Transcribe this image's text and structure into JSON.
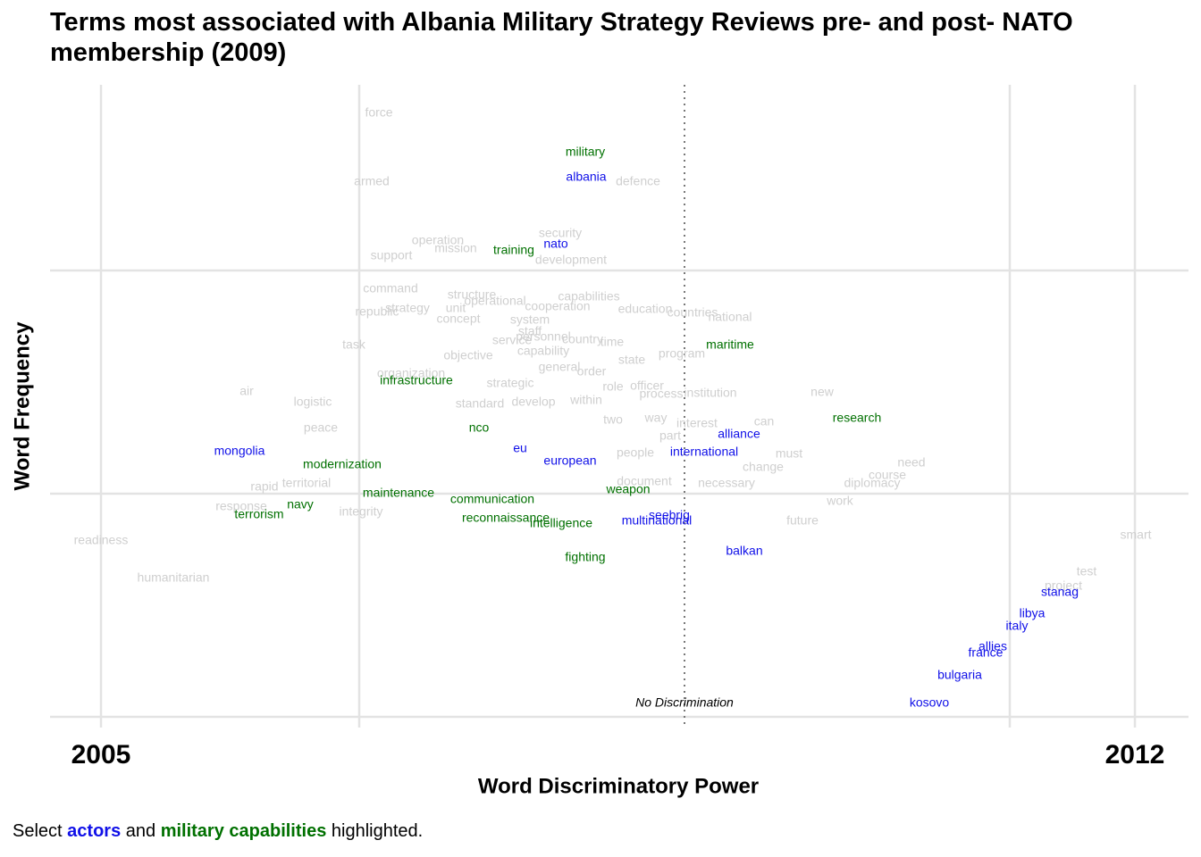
{
  "chart_data": {
    "type": "text_scatter",
    "title": "Terms most associated with Albania Military Strategy Reviews pre- and post- NATO membership (2009)",
    "x_label": "Word Discriminatory Power",
    "y_label": "Word Frequency",
    "annotation": {
      "text": "No Discrimination",
      "x": 0,
      "y": 0.15
    },
    "caption": {
      "prefix": "Select",
      "mid": "and",
      "suffix": "highlighted."
    },
    "xlim": [
      -7.1,
      5.64
    ],
    "ylim": [
      -0.12,
      7.08
    ],
    "xticks": [
      {
        "value": -6.53,
        "label": "2005"
      },
      {
        "value": 5.04,
        "label": "2012"
      }
    ],
    "x_grid": [
      -6.53,
      -3.64,
      3.64,
      5.04
    ],
    "y_grid": [
      0,
      2.5,
      5
    ],
    "base_color": "#cfcfcf",
    "groups": [
      {
        "name": "actors",
        "color": "#1010e8"
      },
      {
        "name": "military capabilities",
        "color": "#007000"
      }
    ],
    "words": [
      {
        "text": "force",
        "x": -3.42,
        "y": 6.76
      },
      {
        "text": "armed",
        "x": -3.5,
        "y": 5.99
      },
      {
        "text": "defence",
        "x": -0.52,
        "y": 5.99
      },
      {
        "text": "security",
        "x": -1.39,
        "y": 5.41
      },
      {
        "text": "operation",
        "x": -2.76,
        "y": 5.33
      },
      {
        "text": "mission",
        "x": -2.56,
        "y": 5.24
      },
      {
        "text": "support",
        "x": -3.28,
        "y": 5.16
      },
      {
        "text": "development",
        "x": -1.27,
        "y": 5.11
      },
      {
        "text": "command",
        "x": -3.29,
        "y": 4.79
      },
      {
        "text": "structure",
        "x": -2.38,
        "y": 4.72
      },
      {
        "text": "operational",
        "x": -2.12,
        "y": 4.65
      },
      {
        "text": "capabilities",
        "x": -1.07,
        "y": 4.7
      },
      {
        "text": "republic",
        "x": -3.44,
        "y": 4.53
      },
      {
        "text": "strategy",
        "x": -3.1,
        "y": 4.57
      },
      {
        "text": "unit",
        "x": -2.56,
        "y": 4.57
      },
      {
        "text": "cooperation",
        "x": -1.42,
        "y": 4.59
      },
      {
        "text": "education",
        "x": -0.44,
        "y": 4.56
      },
      {
        "text": "countries",
        "x": 0.09,
        "y": 4.52
      },
      {
        "text": "concept",
        "x": -2.53,
        "y": 4.45
      },
      {
        "text": "system",
        "x": -1.73,
        "y": 4.44
      },
      {
        "text": "national",
        "x": 0.51,
        "y": 4.47
      },
      {
        "text": "staff",
        "x": -1.73,
        "y": 4.31
      },
      {
        "text": "personnel",
        "x": -1.58,
        "y": 4.25
      },
      {
        "text": "service",
        "x": -1.93,
        "y": 4.21
      },
      {
        "text": "country",
        "x": -1.14,
        "y": 4.22
      },
      {
        "text": "time",
        "x": -0.81,
        "y": 4.19
      },
      {
        "text": "task",
        "x": -3.7,
        "y": 4.16
      },
      {
        "text": "capability",
        "x": -1.58,
        "y": 4.09
      },
      {
        "text": "objective",
        "x": -2.42,
        "y": 4.04
      },
      {
        "text": "program",
        "x": -0.03,
        "y": 4.06
      },
      {
        "text": "state",
        "x": -0.59,
        "y": 3.99
      },
      {
        "text": "general",
        "x": -1.4,
        "y": 3.91
      },
      {
        "text": "order",
        "x": -1.04,
        "y": 3.86
      },
      {
        "text": "organization",
        "x": -3.06,
        "y": 3.84
      },
      {
        "text": "strategic",
        "x": -1.95,
        "y": 3.73
      },
      {
        "text": "role",
        "x": -0.8,
        "y": 3.69
      },
      {
        "text": "officer",
        "x": -0.42,
        "y": 3.7
      },
      {
        "text": "air",
        "x": -4.9,
        "y": 3.64
      },
      {
        "text": "process",
        "x": -0.26,
        "y": 3.61
      },
      {
        "text": "institution",
        "x": 0.29,
        "y": 3.62
      },
      {
        "text": "new",
        "x": 1.54,
        "y": 3.63
      },
      {
        "text": "within",
        "x": -1.1,
        "y": 3.54
      },
      {
        "text": "develop",
        "x": -1.69,
        "y": 3.52
      },
      {
        "text": "logistic",
        "x": -4.16,
        "y": 3.52
      },
      {
        "text": "standard",
        "x": -2.29,
        "y": 3.5
      },
      {
        "text": "two",
        "x": -0.8,
        "y": 3.32
      },
      {
        "text": "way",
        "x": -0.32,
        "y": 3.34
      },
      {
        "text": "can",
        "x": 0.89,
        "y": 3.3
      },
      {
        "text": "interest",
        "x": 0.14,
        "y": 3.28
      },
      {
        "text": "peace",
        "x": -4.07,
        "y": 3.23
      },
      {
        "text": "part",
        "x": -0.16,
        "y": 3.14
      },
      {
        "text": "people",
        "x": -0.55,
        "y": 2.95
      },
      {
        "text": "must",
        "x": 1.17,
        "y": 2.94
      },
      {
        "text": "need",
        "x": 2.54,
        "y": 2.84
      },
      {
        "text": "change",
        "x": 0.88,
        "y": 2.79
      },
      {
        "text": "course",
        "x": 2.27,
        "y": 2.7
      },
      {
        "text": "document",
        "x": -0.45,
        "y": 2.63
      },
      {
        "text": "necessary",
        "x": 0.47,
        "y": 2.61
      },
      {
        "text": "diplomacy",
        "x": 2.1,
        "y": 2.61
      },
      {
        "text": "territorial",
        "x": -4.23,
        "y": 2.61
      },
      {
        "text": "rapid",
        "x": -4.7,
        "y": 2.57
      },
      {
        "text": "work",
        "x": 1.74,
        "y": 2.41
      },
      {
        "text": "response",
        "x": -4.96,
        "y": 2.35
      },
      {
        "text": "integrity",
        "x": -3.62,
        "y": 2.29
      },
      {
        "text": "future",
        "x": 1.32,
        "y": 2.19
      },
      {
        "text": "smart",
        "x": 5.05,
        "y": 2.03
      },
      {
        "text": "readiness",
        "x": -6.53,
        "y": 1.97
      },
      {
        "text": "test",
        "x": 4.5,
        "y": 1.62
      },
      {
        "text": "project",
        "x": 4.24,
        "y": 1.46
      },
      {
        "text": "humanitarian",
        "x": -5.72,
        "y": 1.55
      },
      {
        "text": "albania",
        "x": -1.1,
        "y": 6.04,
        "group": 0
      },
      {
        "text": "nato",
        "x": -1.44,
        "y": 5.29,
        "group": 0
      },
      {
        "text": "mongolia",
        "x": -4.98,
        "y": 2.97,
        "group": 0
      },
      {
        "text": "eu",
        "x": -1.84,
        "y": 3.0,
        "group": 0
      },
      {
        "text": "european",
        "x": -1.28,
        "y": 2.86,
        "group": 0
      },
      {
        "text": "international",
        "x": 0.22,
        "y": 2.96,
        "group": 0
      },
      {
        "text": "alliance",
        "x": 0.61,
        "y": 3.16,
        "group": 0
      },
      {
        "text": "seebrig",
        "x": -0.17,
        "y": 2.25,
        "group": 0
      },
      {
        "text": "multinational",
        "x": -0.31,
        "y": 2.19,
        "group": 0
      },
      {
        "text": "balkan",
        "x": 0.67,
        "y": 1.85,
        "group": 0
      },
      {
        "text": "stanag",
        "x": 4.2,
        "y": 1.39,
        "group": 0
      },
      {
        "text": "libya",
        "x": 3.89,
        "y": 1.15,
        "group": 0
      },
      {
        "text": "italy",
        "x": 3.72,
        "y": 1.01,
        "group": 0
      },
      {
        "text": "allies",
        "x": 3.45,
        "y": 0.78,
        "group": 0
      },
      {
        "text": "france",
        "x": 3.37,
        "y": 0.71,
        "group": 0
      },
      {
        "text": "bulgaria",
        "x": 3.08,
        "y": 0.46,
        "group": 0
      },
      {
        "text": "kosovo",
        "x": 2.74,
        "y": 0.15,
        "group": 0
      },
      {
        "text": "military",
        "x": -1.11,
        "y": 6.32,
        "group": 1
      },
      {
        "text": "training",
        "x": -1.91,
        "y": 5.22,
        "group": 1
      },
      {
        "text": "maritime",
        "x": 0.51,
        "y": 4.16,
        "group": 1
      },
      {
        "text": "infrastructure",
        "x": -3.0,
        "y": 3.76,
        "group": 1
      },
      {
        "text": "research",
        "x": 1.93,
        "y": 3.34,
        "group": 1
      },
      {
        "text": "nco",
        "x": -2.3,
        "y": 3.23,
        "group": 1
      },
      {
        "text": "modernization",
        "x": -3.83,
        "y": 2.82,
        "group": 1
      },
      {
        "text": "maintenance",
        "x": -3.2,
        "y": 2.5,
        "group": 1
      },
      {
        "text": "weapon",
        "x": -0.63,
        "y": 2.54,
        "group": 1
      },
      {
        "text": "communication",
        "x": -2.15,
        "y": 2.43,
        "group": 1
      },
      {
        "text": "navy",
        "x": -4.3,
        "y": 2.37,
        "group": 1
      },
      {
        "text": "terrorism",
        "x": -4.76,
        "y": 2.26,
        "group": 1
      },
      {
        "text": "reconnaissance",
        "x": -2.0,
        "y": 2.22,
        "group": 1
      },
      {
        "text": "intelligence",
        "x": -1.38,
        "y": 2.16,
        "group": 1
      },
      {
        "text": "fighting",
        "x": -1.11,
        "y": 1.78,
        "group": 1
      }
    ]
  }
}
